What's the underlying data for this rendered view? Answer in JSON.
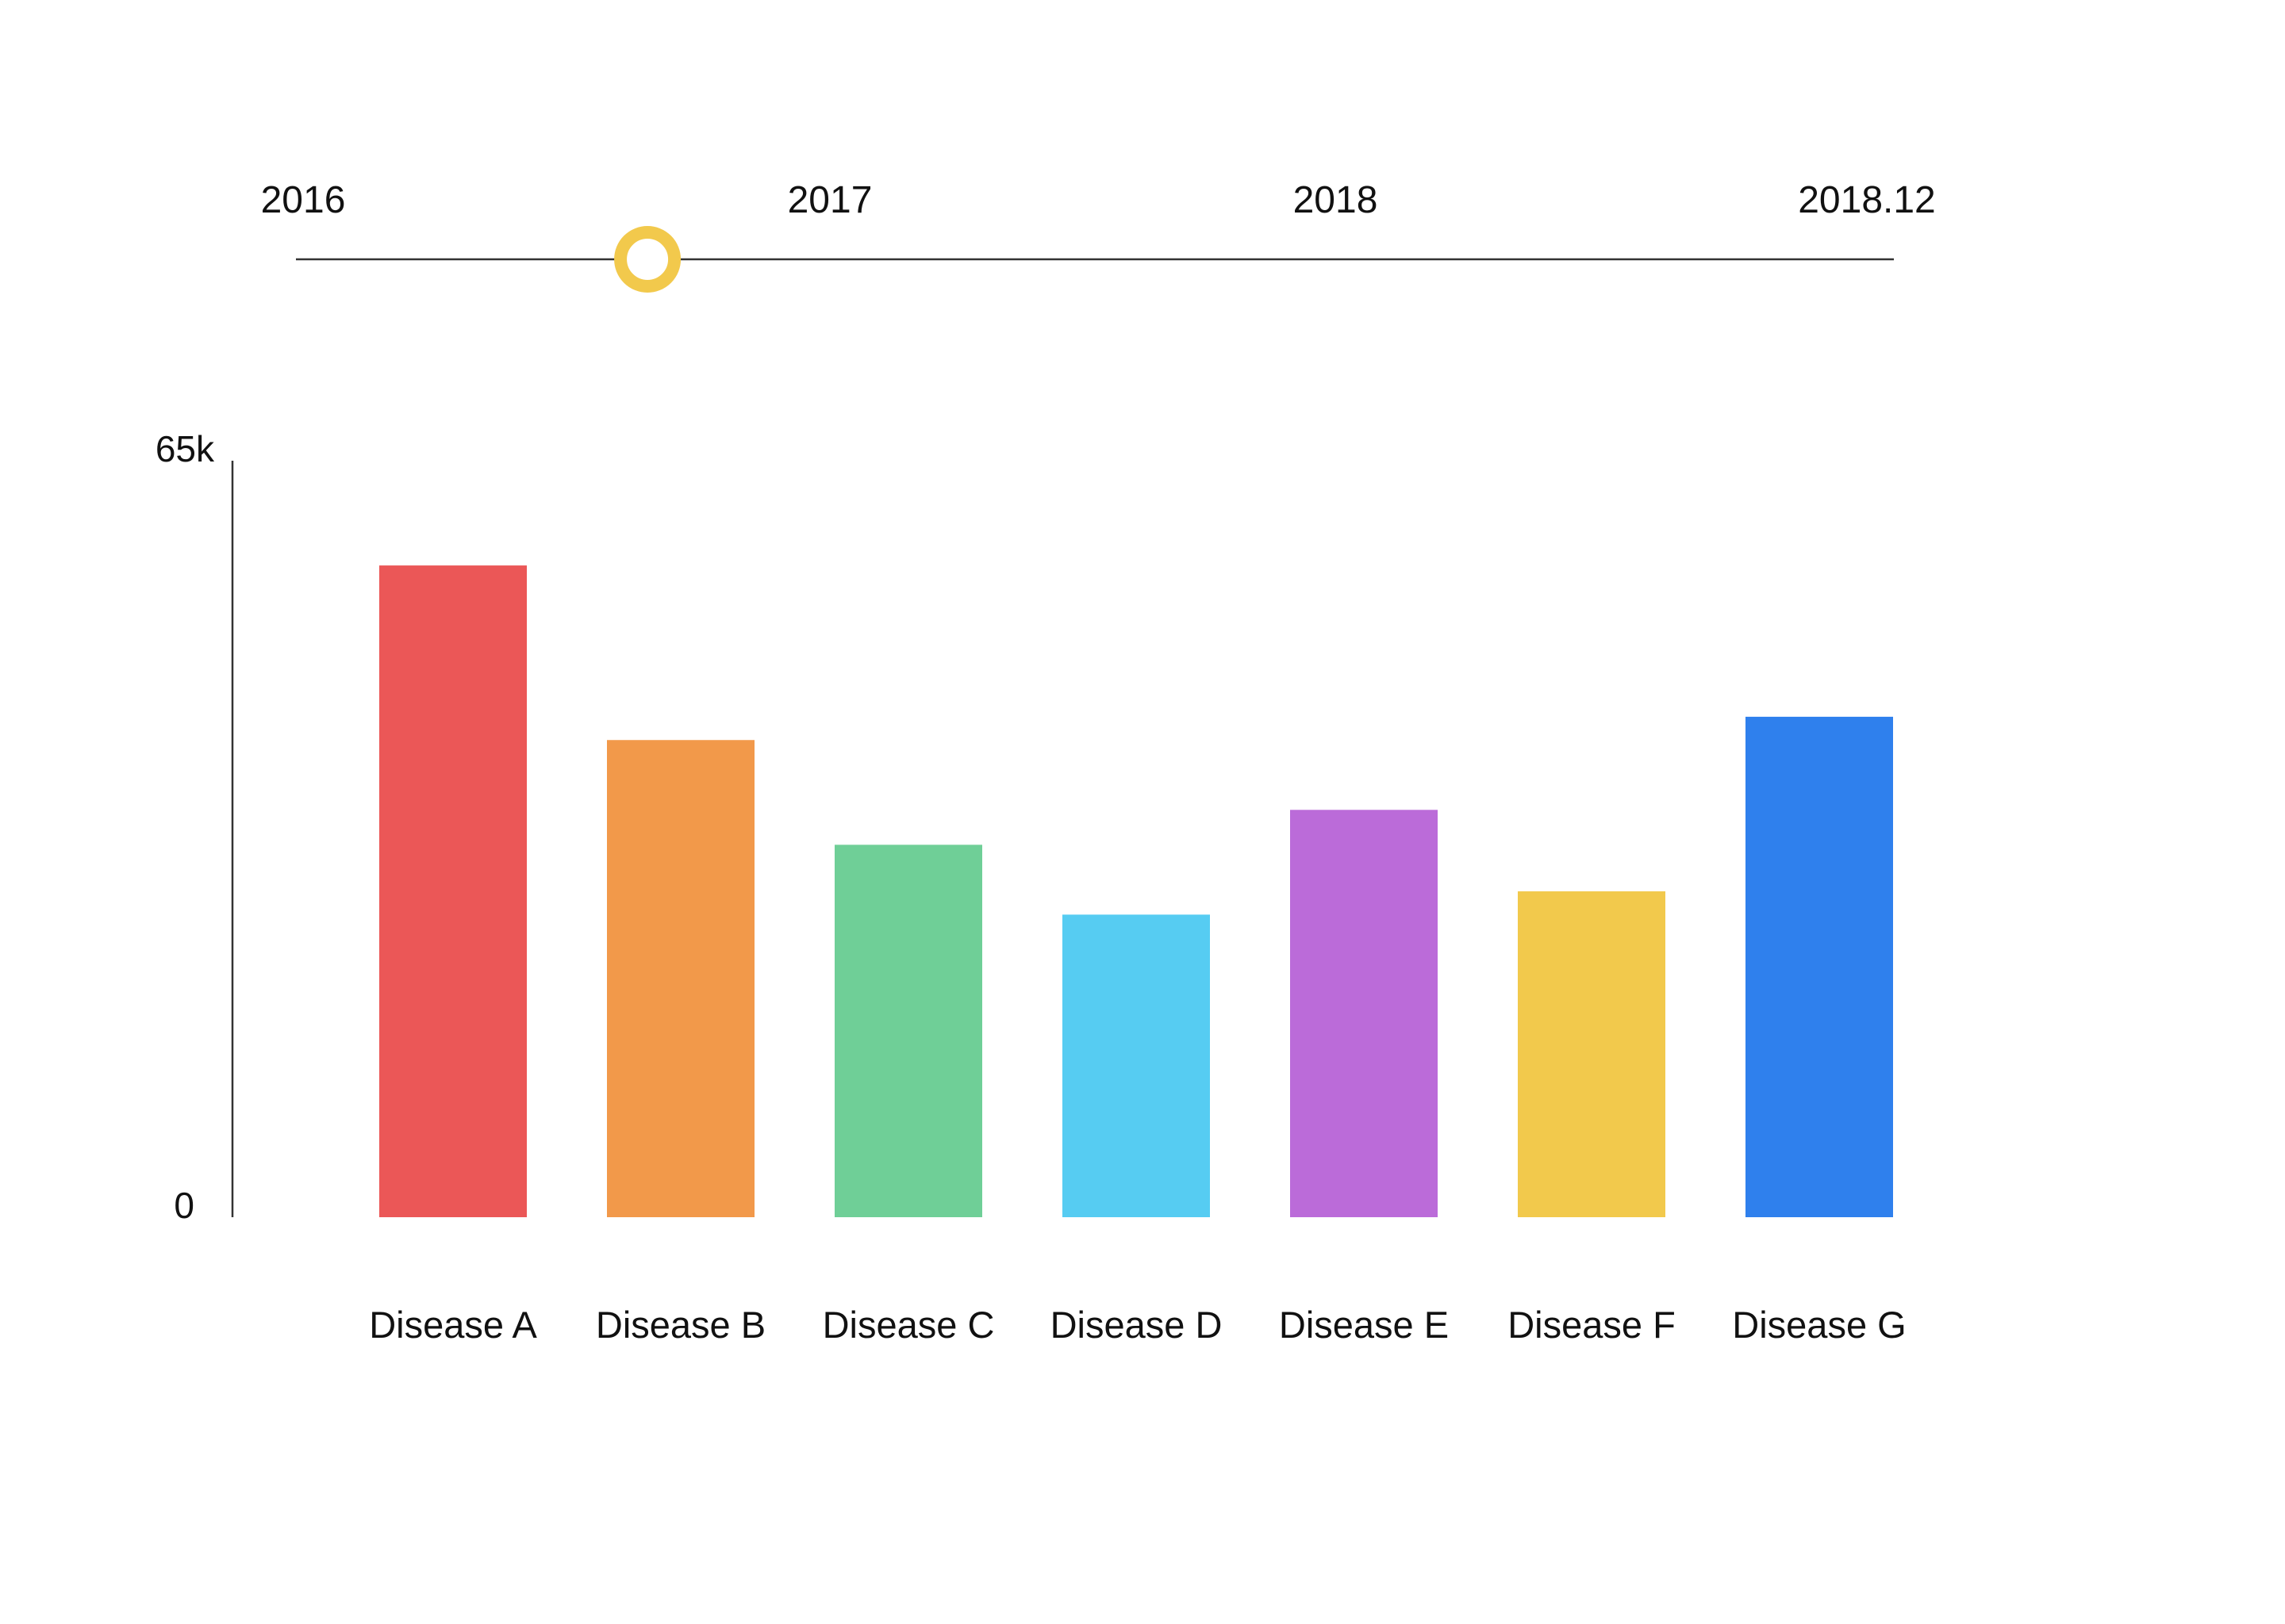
{
  "timeline": {
    "labels": [
      "2016",
      "2017",
      "2018",
      "2018.12"
    ],
    "position": 0.22,
    "handle_color": "#F2C94C",
    "line_color": "#333333"
  },
  "chart_data": {
    "type": "bar",
    "categories": [
      "Disease A",
      "Disease B",
      "Disease C",
      "Disease D",
      "Disease E",
      "Disease F",
      "Disease G"
    ],
    "values": [
      56000,
      41000,
      32000,
      26000,
      35000,
      28000,
      43000
    ],
    "colors": [
      "#EB5757",
      "#F2994A",
      "#6FCF97",
      "#56CCF2",
      "#BB6BD9",
      "#F2C94C",
      "#2F80ED"
    ],
    "ylim": [
      0,
      65000
    ],
    "y_tick_labels": [
      "0",
      "65k"
    ],
    "title": "",
    "xlabel": "",
    "ylabel": "",
    "grid": false,
    "legend": "none"
  }
}
